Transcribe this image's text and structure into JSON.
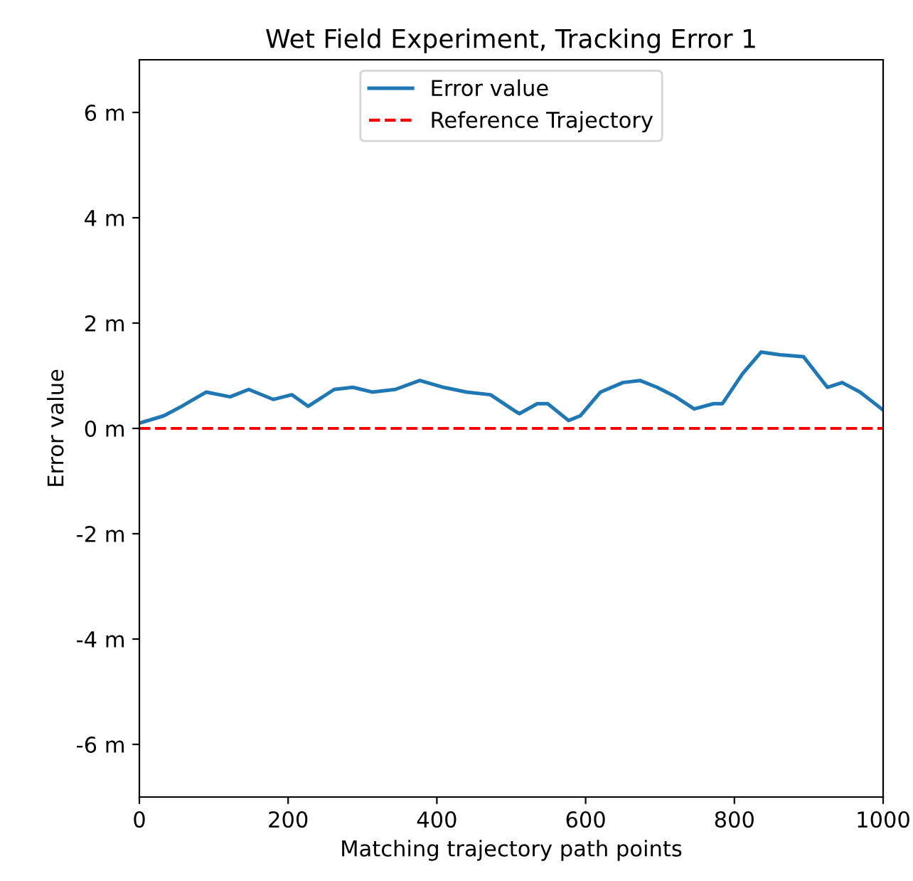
{
  "chart_data": {
    "type": "line",
    "title": "Wet Field Experiment, Tracking Error 1",
    "xlabel": "Matching trajectory path points",
    "ylabel": "Error value",
    "xlim": [
      0,
      1000
    ],
    "xticks": [
      0,
      200,
      400,
      600,
      800,
      1000
    ],
    "ylim": [
      -7,
      7
    ],
    "yticks": [
      {
        "value": -6,
        "label": "-6 m"
      },
      {
        "value": -4,
        "label": "-4 m"
      },
      {
        "value": -2,
        "label": "-2 m"
      },
      {
        "value": 0,
        "label": "0 m"
      },
      {
        "value": 2,
        "label": "2 m"
      },
      {
        "value": 4,
        "label": "4 m"
      },
      {
        "value": 6,
        "label": "6 m"
      }
    ],
    "grid": false,
    "legend": "top",
    "line_style": "solid",
    "marker": "none",
    "series": [
      {
        "name": "Error value",
        "color": "#1f77b4",
        "x": [
          0,
          33,
          57,
          90,
          122,
          147,
          180,
          205,
          227,
          262,
          287,
          313,
          344,
          377,
          409,
          440,
          472,
          504,
          511,
          535,
          549,
          577,
          593,
          620,
          650,
          673,
          696,
          721,
          746,
          772,
          784,
          811,
          836,
          861,
          893,
          925,
          945,
          969,
          998,
          1000
        ],
        "values": [
          0.1,
          0.24,
          0.42,
          0.69,
          0.6,
          0.74,
          0.55,
          0.64,
          0.42,
          0.74,
          0.78,
          0.69,
          0.74,
          0.91,
          0.78,
          0.69,
          0.64,
          0.34,
          0.28,
          0.47,
          0.47,
          0.15,
          0.24,
          0.69,
          0.87,
          0.91,
          0.78,
          0.6,
          0.37,
          0.47,
          0.47,
          1.04,
          1.45,
          1.4,
          1.36,
          0.78,
          0.87,
          0.69,
          0.37,
          0.35
        ]
      },
      {
        "name": "Reference Trajectory",
        "color": "#ff0000",
        "line_style": "dashed",
        "x": [
          0,
          1000
        ],
        "values": [
          0,
          0
        ]
      }
    ]
  }
}
